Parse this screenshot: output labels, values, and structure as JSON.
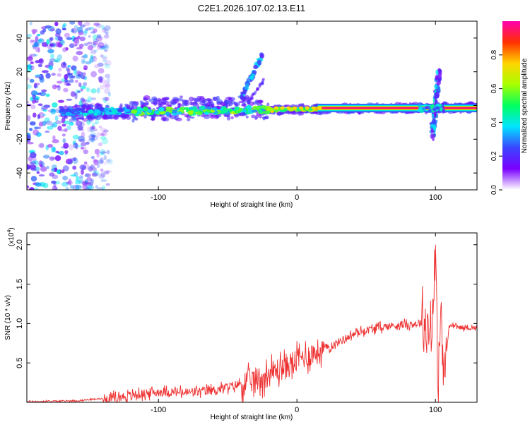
{
  "chart_data": [
    {
      "type": "heatmap",
      "title": "C2E1.2026.107.02.13.E11",
      "xlabel": "Height of straight line (km)",
      "ylabel": "Frequency (Hz)",
      "xlim": [
        -195,
        130
      ],
      "ylim": [
        -50,
        50
      ],
      "x_ticks": [
        -100,
        0,
        100
      ],
      "y_ticks": [
        -40,
        -20,
        0,
        20,
        40
      ],
      "colorbar": {
        "label": "Normalized spectral amplitude",
        "range": [
          0,
          1
        ],
        "ticks": [
          0.0,
          0.2,
          0.4,
          0.6,
          0.8
        ],
        "tick_labels": [
          "0.0",
          "0.2",
          "0.4",
          "0.6",
          "0.8"
        ],
        "colors": [
          "#ffffff",
          "#7a00ff",
          "#3b45ff",
          "#00e5ff",
          "#00ff60",
          "#a8ff00",
          "#ffd400",
          "#ff3000",
          "#ff00b0"
        ]
      },
      "features": [
        {
          "name": "main-line",
          "x_range": [
            -170,
            130
          ],
          "freq_start": -4,
          "freq_end": -1,
          "amplitude": 0.95
        },
        {
          "name": "noise-region",
          "x_range": [
            -195,
            -135
          ],
          "freq_range": [
            -50,
            50
          ],
          "amplitude": 0.3
        },
        {
          "name": "rising-streak",
          "x_range": [
            -40,
            -25
          ],
          "freq_range": [
            5,
            30
          ],
          "amplitude": 0.25
        },
        {
          "name": "spike-100km",
          "x": 100,
          "freq_range": [
            -20,
            22
          ],
          "amplitude": 0.35
        }
      ]
    },
    {
      "type": "line",
      "xlabel": "Height of straight line (km)",
      "ylabel": "SNR (10 * v/v)",
      "multiplier_label": "(x10",
      "multiplier_exponent": "4",
      "xlim": [
        -195,
        130
      ],
      "ylim": [
        0,
        2.15
      ],
      "x_ticks": [
        -100,
        0,
        100
      ],
      "y_ticks": [
        0.5,
        1.0,
        1.5,
        2.0
      ],
      "y_tick_labels": [
        "0.5",
        "1.0",
        "1.5",
        "2.0"
      ],
      "series": [
        {
          "name": "SNR",
          "color": "#ee3030",
          "x": [
            -195,
            -160,
            -140,
            -120,
            -100,
            -80,
            -60,
            -45,
            -35,
            -25,
            -15,
            -5,
            5,
            15,
            25,
            35,
            45,
            55,
            65,
            75,
            85,
            92,
            96,
            98,
            100,
            102,
            104,
            106,
            110,
            120,
            130
          ],
          "y": [
            0.01,
            0.02,
            0.05,
            0.09,
            0.14,
            0.13,
            0.16,
            0.22,
            0.28,
            0.33,
            0.42,
            0.5,
            0.6,
            0.66,
            0.72,
            0.82,
            0.9,
            0.94,
            0.97,
            0.99,
            1.0,
            1.02,
            0.95,
            1.25,
            1.8,
            0.1,
            1.3,
            0.3,
            0.98,
            0.95,
            0.95
          ]
        }
      ]
    }
  ]
}
